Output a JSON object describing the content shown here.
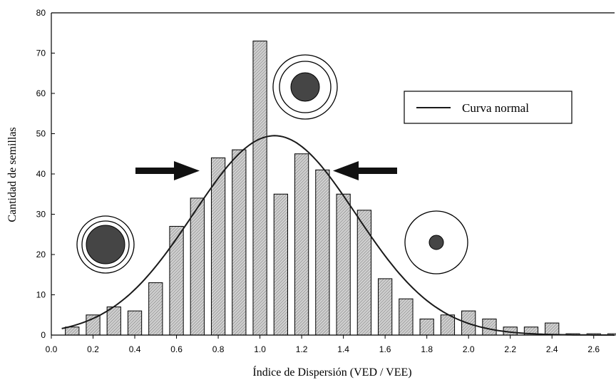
{
  "chart_data": {
    "type": "bar",
    "xlabel": "Índice de Dispersión (VED / VEE)",
    "ylabel": "Cantidad de semillas",
    "xlim": [
      0.0,
      2.7
    ],
    "ylim": [
      0,
      80
    ],
    "x_ticks": [
      "0.0",
      "0.2",
      "0.4",
      "0.6",
      "0.8",
      "1.0",
      "1.2",
      "1.4",
      "1.6",
      "1.8",
      "2.0",
      "2.2",
      "2.4",
      "2.6"
    ],
    "y_ticks": [
      "0",
      "10",
      "20",
      "30",
      "40",
      "50",
      "60",
      "70",
      "80"
    ],
    "bin_width": 0.1,
    "bins": [
      {
        "x": 0.1,
        "count": 2
      },
      {
        "x": 0.2,
        "count": 5
      },
      {
        "x": 0.3,
        "count": 7
      },
      {
        "x": 0.4,
        "count": 6
      },
      {
        "x": 0.5,
        "count": 13
      },
      {
        "x": 0.6,
        "count": 27
      },
      {
        "x": 0.7,
        "count": 34
      },
      {
        "x": 0.8,
        "count": 44
      },
      {
        "x": 0.9,
        "count": 46
      },
      {
        "x": 1.0,
        "count": 73
      },
      {
        "x": 1.1,
        "count": 35
      },
      {
        "x": 1.2,
        "count": 45
      },
      {
        "x": 1.3,
        "count": 41
      },
      {
        "x": 1.4,
        "count": 35
      },
      {
        "x": 1.5,
        "count": 31
      },
      {
        "x": 1.6,
        "count": 14
      },
      {
        "x": 1.7,
        "count": 9
      },
      {
        "x": 1.8,
        "count": 4
      },
      {
        "x": 1.9,
        "count": 5
      },
      {
        "x": 2.0,
        "count": 6
      },
      {
        "x": 2.1,
        "count": 4
      },
      {
        "x": 2.2,
        "count": 2
      },
      {
        "x": 2.3,
        "count": 2
      },
      {
        "x": 2.4,
        "count": 3
      },
      {
        "x": 2.5,
        "count": 0
      },
      {
        "x": 2.6,
        "count": 0
      },
      {
        "x": 2.7,
        "count": 0
      }
    ],
    "series": [
      {
        "name": "Curva normal",
        "type": "line",
        "mean": 1.07,
        "std": 0.39,
        "peak": 49.5
      }
    ],
    "legend": {
      "label": "Curva normal",
      "position": "top-right"
    },
    "grid": false
  },
  "colors": {
    "bar_fill": "#d0d0d0",
    "bar_hatch": "#7a7a7a",
    "axis": "#000000",
    "curve": "#1a1a1a",
    "arrow": "#111111",
    "circle_fill": "#454545"
  },
  "icons": [
    "large-seed-circle-icon",
    "medium-seed-circle-icon",
    "small-seed-circle-icon",
    "arrow-right-icon",
    "arrow-left-icon"
  ]
}
